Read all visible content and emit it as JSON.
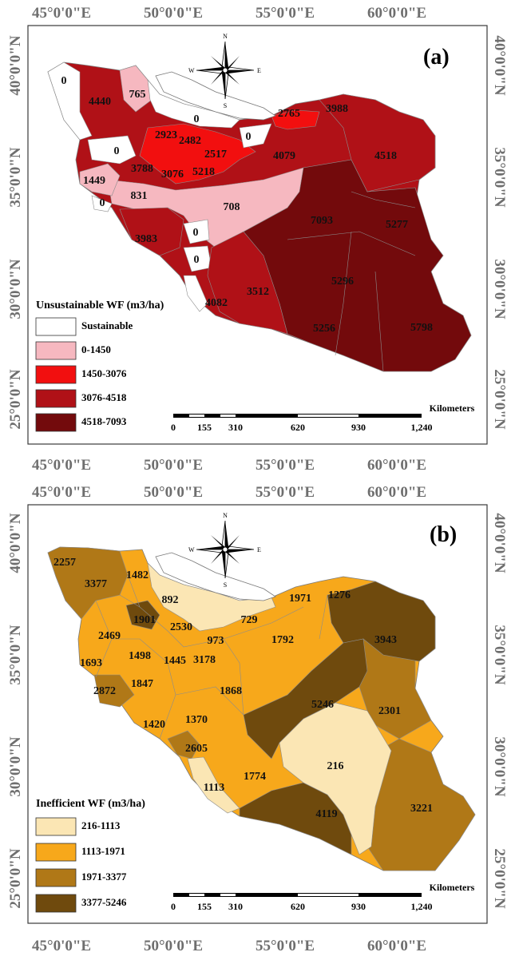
{
  "top_lon_labels": [
    "45°0'0\"E",
    "50°0'0\"E",
    "55°0'0\"E",
    "60°0'0\"E"
  ],
  "lat_labels": [
    "40°0'0\"N",
    "35°0'0\"N",
    "30°0'0\"N",
    "25°0'0\"N"
  ],
  "bottom_lon_labels": [
    "45°0'0\"E",
    "50°0'0\"E",
    "55°0'0\"E",
    "60°0'0\"E"
  ],
  "compass": {
    "n": "N",
    "s": "S",
    "e": "E",
    "w": "W"
  },
  "scale": {
    "unit": "Kilometers",
    "ticks": [
      "0",
      "155",
      "310",
      "620",
      "930",
      "1,240"
    ]
  },
  "panel_a": {
    "panel_label": "(a)",
    "legend_title": "Unsustainable WF (m3/ha)",
    "legend": [
      {
        "label": "Sustainable",
        "color": "#ffffff"
      },
      {
        "label": "0-1450",
        "color": "#f6b8c0"
      },
      {
        "label": "1450-3076",
        "color": "#f20f0f"
      },
      {
        "label": "3076-4518",
        "color": "#b01117"
      },
      {
        "label": "4518-7093",
        "color": "#730a0c"
      }
    ],
    "province_values": [
      "0",
      "4440",
      "765",
      "0",
      "2923",
      "2482",
      "2517",
      "0",
      "2765",
      "3988",
      "4079",
      "4518",
      "0",
      "3788",
      "3076",
      "5218",
      "1449",
      "0",
      "831",
      "708",
      "7093",
      "5277",
      "3983",
      "0",
      "0",
      "3512",
      "4082",
      "5296",
      "5256",
      "5798"
    ]
  },
  "panel_b": {
    "panel_label": "(b)",
    "legend_title": "Inefficient WF (m3/ha)",
    "legend": [
      {
        "label": "216-1113",
        "color": "#fbe6b4"
      },
      {
        "label": "1113-1971",
        "color": "#f7a81b"
      },
      {
        "label": "1971-3377",
        "color": "#b07817"
      },
      {
        "label": "3377-5246",
        "color": "#6f4a0d"
      }
    ],
    "province_values": [
      "2257",
      "3377",
      "1482",
      "892",
      "1971",
      "1276",
      "1901",
      "2530",
      "729",
      "2469",
      "973",
      "1792",
      "3943",
      "1693",
      "1498",
      "1445",
      "3178",
      "1847",
      "2872",
      "1868",
      "5246",
      "2301",
      "1420",
      "1370",
      "2605",
      "216",
      "1113",
      "1774",
      "4119",
      "3221"
    ]
  }
}
